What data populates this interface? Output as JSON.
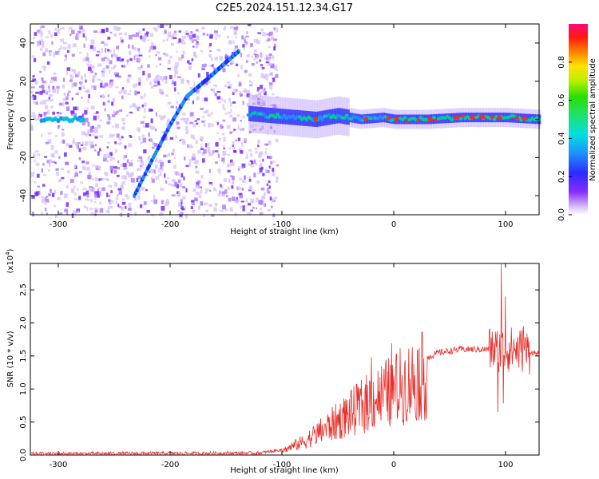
{
  "title": "C2E5.2024.151.12.34.G17",
  "colors": {
    "snr_line": "#e8302c",
    "ridge_a": "#1f8fff",
    "ridge_b": "#00c8a0",
    "ridge_c": "#ff2a10",
    "scatter_light": "#d7c2ff",
    "scatter_dark": "#6d1cff"
  },
  "colorbar": {
    "label": "Normalized spectral amplitude",
    "ticks": [
      "0.0",
      "0.2",
      "0.4",
      "0.6",
      "0.8"
    ],
    "range": [
      0,
      1
    ],
    "colormap": "rainbow (violet→blue→cyan→green→yellow→red→magenta)"
  },
  "chart_data": [
    {
      "type": "heatmap",
      "xlabel": "Height of straight line (km)",
      "ylabel": "Frequency (Hz)",
      "xlim": [
        -325,
        130
      ],
      "ylim": [
        -50,
        50
      ],
      "xticks": [
        "-300",
        "-200",
        "-100",
        "0",
        "100"
      ],
      "yticks": [
        "-40",
        "-20",
        "0",
        "20",
        "40"
      ],
      "features": {
        "diagonal_trace": [
          [
            -232,
            -40
          ],
          [
            -215,
            -20
          ],
          [
            -200,
            -3
          ],
          [
            -185,
            12
          ],
          [
            -165,
            22
          ],
          [
            -150,
            30
          ],
          [
            -138,
            36
          ]
        ],
        "constant_band": [
          [
            -325,
            0
          ],
          [
            -300,
            0
          ],
          [
            -280,
            0
          ]
        ],
        "ridge": [
          [
            -130,
            3
          ],
          [
            -110,
            2
          ],
          [
            -90,
            1
          ],
          [
            -70,
            0
          ],
          [
            -50,
            2
          ],
          [
            -30,
            0
          ],
          [
            -10,
            1
          ],
          [
            0,
            0
          ],
          [
            30,
            0
          ],
          [
            60,
            1
          ],
          [
            80,
            1
          ],
          [
            100,
            1
          ],
          [
            130,
            0
          ]
        ]
      }
    },
    {
      "type": "line",
      "xlabel": "Height of straight line (km)",
      "ylabel": "SNR (10 * v/v)",
      "y_multiplier": "(x10",
      "y_multiplier_exp": "4",
      "y_multiplier_close": ")",
      "xlim": [
        -325,
        130
      ],
      "ylim": [
        0,
        29000
      ],
      "xticks": [
        "-300",
        "-200",
        "-100",
        "0",
        "100"
      ],
      "yticks": [
        "0.0",
        "0.5",
        "1.0",
        "1.5",
        "2.0",
        "2.5"
      ],
      "envelope": {
        "x": [
          -325,
          -120,
          -100,
          -80,
          -60,
          -40,
          -20,
          0,
          20,
          40,
          60,
          80,
          95,
          110,
          130
        ],
        "y": [
          200,
          300,
          800,
          2500,
          5000,
          7500,
          10000,
          12000,
          14000,
          15500,
          16000,
          16000,
          16000,
          16000,
          15300
        ]
      },
      "peaks": [
        {
          "x": -20,
          "y": 14800
        },
        {
          "x": -2,
          "y": 16900
        },
        {
          "x": 96,
          "y": 28900
        },
        {
          "x": 100,
          "y": 24000
        },
        {
          "x": 93,
          "y": 6500
        },
        {
          "x": 98,
          "y": 7800
        },
        {
          "x": 116,
          "y": 19500
        }
      ]
    }
  ]
}
